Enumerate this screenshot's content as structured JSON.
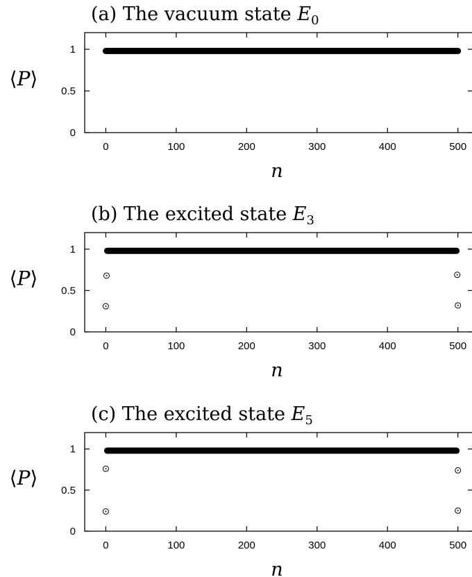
{
  "chart_data": [
    {
      "type": "scatter",
      "title": "(a) The vacuum state E0",
      "title_prefix": "(a) The vacuum state ",
      "title_var": "E",
      "title_sub": "0",
      "xlabel": "n",
      "ylabel": "⟨P⟩",
      "ylabel_open": "⟨",
      "ylabel_var": "P",
      "ylabel_close": "⟩",
      "xlim": [
        -30,
        520
      ],
      "ylim": [
        0,
        1.2
      ],
      "xticks": [
        0,
        100,
        200,
        300,
        400,
        500
      ],
      "yticks": [
        0,
        0.5,
        1
      ],
      "xtick_labels": [
        "0",
        "100",
        "200",
        "300",
        "400",
        "500"
      ],
      "ytick_labels": [
        "0",
        "0.5",
        "1"
      ],
      "bulk": {
        "n_range": [
          0,
          500
        ],
        "value": 0.98
      },
      "points": []
    },
    {
      "type": "scatter",
      "title": "(b) The excited state E3",
      "title_prefix": "(b) The excited state ",
      "title_var": "E",
      "title_sub": "3",
      "xlabel": "n",
      "ylabel": "⟨P⟩",
      "ylabel_open": "⟨",
      "ylabel_var": "P",
      "ylabel_close": "⟩",
      "xlim": [
        -30,
        520
      ],
      "ylim": [
        0,
        1.2
      ],
      "xticks": [
        0,
        100,
        200,
        300,
        400,
        500
      ],
      "yticks": [
        0,
        0.5,
        1
      ],
      "xtick_labels": [
        "0",
        "100",
        "200",
        "300",
        "400",
        "500"
      ],
      "ytick_labels": [
        "0",
        "0.5",
        "1"
      ],
      "bulk": {
        "n_range": [
          2,
          498
        ],
        "value": 0.98
      },
      "points": [
        {
          "x": 0,
          "y": 0.31
        },
        {
          "x": 1,
          "y": 0.68
        },
        {
          "x": 499,
          "y": 0.69
        },
        {
          "x": 500,
          "y": 0.32
        }
      ]
    },
    {
      "type": "scatter",
      "title": "(c) The excited state E5",
      "title_prefix": "(c) The excited state ",
      "title_var": "E",
      "title_sub": "5",
      "xlabel": "n",
      "ylabel": "⟨P⟩",
      "ylabel_open": "⟨",
      "ylabel_var": "P",
      "ylabel_close": "⟩",
      "xlim": [
        -30,
        520
      ],
      "ylim": [
        0,
        1.2
      ],
      "xticks": [
        0,
        100,
        200,
        300,
        400,
        500
      ],
      "yticks": [
        0,
        0.5,
        1
      ],
      "xtick_labels": [
        "0",
        "100",
        "200",
        "300",
        "400",
        "500"
      ],
      "ytick_labels": [
        "0",
        "0.5",
        "1"
      ],
      "bulk": {
        "n_range": [
          2,
          498
        ],
        "value": 0.98
      },
      "points": [
        {
          "x": 0,
          "y": 0.24
        },
        {
          "x": 0,
          "y": 0.76
        },
        {
          "x": 500,
          "y": 0.74
        },
        {
          "x": 500,
          "y": 0.25
        }
      ]
    }
  ]
}
